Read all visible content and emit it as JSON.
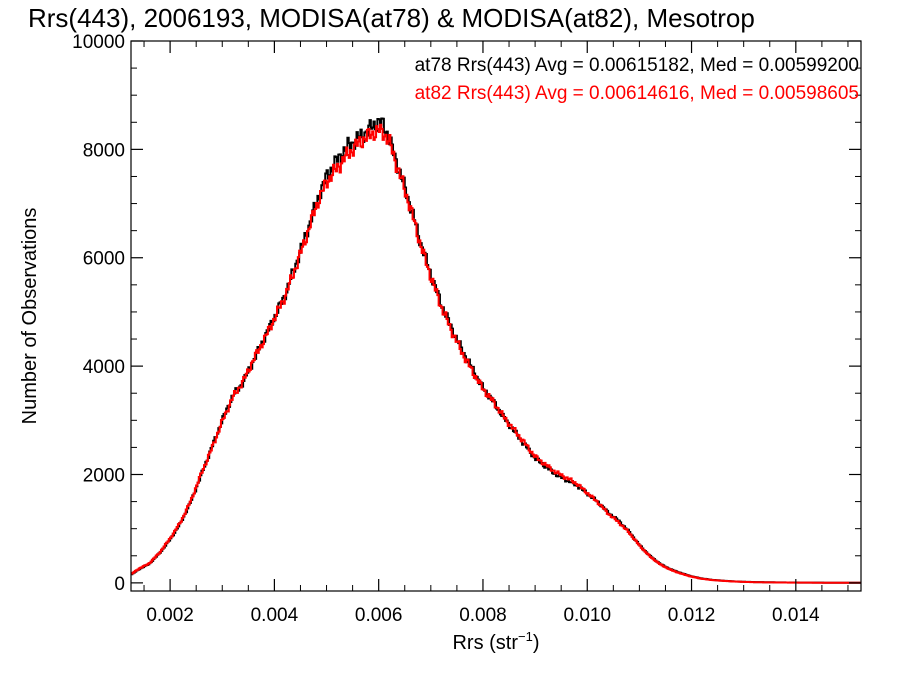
{
  "chart_data": {
    "type": "line",
    "title": "Rrs(443), 2006193, MODISA(at78) & MODISA(at82), Mesotrop",
    "xlabel": {
      "base": "Rrs (str",
      "sup": "−1",
      "end": ")"
    },
    "ylabel": "Number of Observations",
    "xlim": [
      0.00125,
      0.01525
    ],
    "ylim": [
      -150,
      10000
    ],
    "xticks": [
      0.002,
      0.004,
      0.006,
      0.008,
      0.01,
      0.012,
      0.014
    ],
    "xtick_labels": [
      "0.002",
      "0.004",
      "0.006",
      "0.008",
      "0.010",
      "0.012",
      "0.014"
    ],
    "yticks": [
      0,
      2000,
      4000,
      6000,
      8000,
      10000
    ],
    "ytick_labels": [
      "0",
      "2000",
      "4000",
      "6000",
      "8000",
      "10000"
    ],
    "x_minor_step": 0.0005,
    "y_minor_step": 500,
    "grid": false,
    "stats": [
      {
        "text": "at78 Rrs(443) Avg = 0.00615182, Med = 0.00599200",
        "color": "#000000"
      },
      {
        "text": "at82 Rrs(443) Avg = 0.00614616, Med = 0.00598605",
        "color": "#ff0000"
      }
    ],
    "series": [
      {
        "color": "#000000",
        "step": "mid",
        "x": [
          0.00125,
          0.0014,
          0.0016,
          0.0018,
          0.002,
          0.0022,
          0.0024,
          0.0026,
          0.0028,
          0.003,
          0.0032,
          0.0034,
          0.0036,
          0.0038,
          0.004,
          0.0042,
          0.0044,
          0.0046,
          0.0048,
          0.005,
          0.0052,
          0.0054,
          0.0056,
          0.0058,
          0.0059,
          0.006,
          0.0061,
          0.0062,
          0.0064,
          0.0066,
          0.0068,
          0.007,
          0.0072,
          0.0074,
          0.0076,
          0.0078,
          0.008,
          0.0082,
          0.0084,
          0.0086,
          0.0088,
          0.009,
          0.0092,
          0.0094,
          0.0096,
          0.0098,
          0.01,
          0.0102,
          0.0104,
          0.0106,
          0.0108,
          0.011,
          0.0112,
          0.0114,
          0.0116,
          0.0118,
          0.012,
          0.0122,
          0.0124,
          0.0126,
          0.0128,
          0.013,
          0.0132,
          0.0134,
          0.0136,
          0.0138,
          0.014,
          0.0142,
          0.0144,
          0.0146,
          0.0148,
          0.015,
          0.01525
        ],
        "y": [
          150,
          250,
          350,
          550,
          800,
          1100,
          1500,
          2000,
          2500,
          3000,
          3450,
          3700,
          4100,
          4500,
          4900,
          5300,
          5850,
          6400,
          7000,
          7500,
          7800,
          8050,
          8200,
          8350,
          8450,
          8500,
          8450,
          8200,
          7600,
          7000,
          6300,
          5700,
          5150,
          4700,
          4300,
          3950,
          3600,
          3350,
          3050,
          2800,
          2550,
          2300,
          2150,
          2000,
          1900,
          1800,
          1650,
          1500,
          1300,
          1150,
          950,
          700,
          500,
          350,
          250,
          180,
          120,
          80,
          55,
          40,
          28,
          20,
          15,
          12,
          10,
          8,
          6,
          5,
          4,
          3,
          2,
          2,
          2
        ]
      },
      {
        "color": "#ff0000",
        "step": "mid",
        "x": [
          0.00125,
          0.0014,
          0.0016,
          0.0018,
          0.002,
          0.0022,
          0.0024,
          0.0026,
          0.0028,
          0.003,
          0.0032,
          0.0034,
          0.0036,
          0.0038,
          0.004,
          0.0042,
          0.0044,
          0.0046,
          0.0048,
          0.005,
          0.0052,
          0.0054,
          0.0056,
          0.0058,
          0.0059,
          0.006,
          0.0061,
          0.0062,
          0.0064,
          0.0066,
          0.0068,
          0.007,
          0.0072,
          0.0074,
          0.0076,
          0.0078,
          0.008,
          0.0082,
          0.0084,
          0.0086,
          0.0088,
          0.009,
          0.0092,
          0.0094,
          0.0096,
          0.0098,
          0.01,
          0.0102,
          0.0104,
          0.0106,
          0.0108,
          0.011,
          0.0112,
          0.0114,
          0.0116,
          0.0118,
          0.012,
          0.0122,
          0.0124,
          0.0126,
          0.0128,
          0.013,
          0.0132,
          0.0134,
          0.0136,
          0.0138,
          0.014,
          0.0142,
          0.0144,
          0.0146,
          0.0148,
          0.015,
          0.01525
        ],
        "y": [
          160,
          260,
          360,
          560,
          820,
          1120,
          1520,
          2020,
          2480,
          2980,
          3420,
          3720,
          4120,
          4480,
          4880,
          5280,
          5800,
          6350,
          6950,
          7400,
          7650,
          7900,
          8100,
          8250,
          8300,
          8350,
          8300,
          8150,
          7550,
          6950,
          6250,
          5650,
          5100,
          4650,
          4250,
          3900,
          3580,
          3340,
          3060,
          2820,
          2580,
          2330,
          2180,
          2040,
          1940,
          1830,
          1660,
          1490,
          1280,
          1120,
          930,
          690,
          490,
          340,
          240,
          170,
          115,
          75,
          52,
          38,
          26,
          18,
          13,
          10,
          8,
          6,
          5,
          4,
          3,
          2,
          2,
          2,
          2
        ]
      }
    ]
  }
}
